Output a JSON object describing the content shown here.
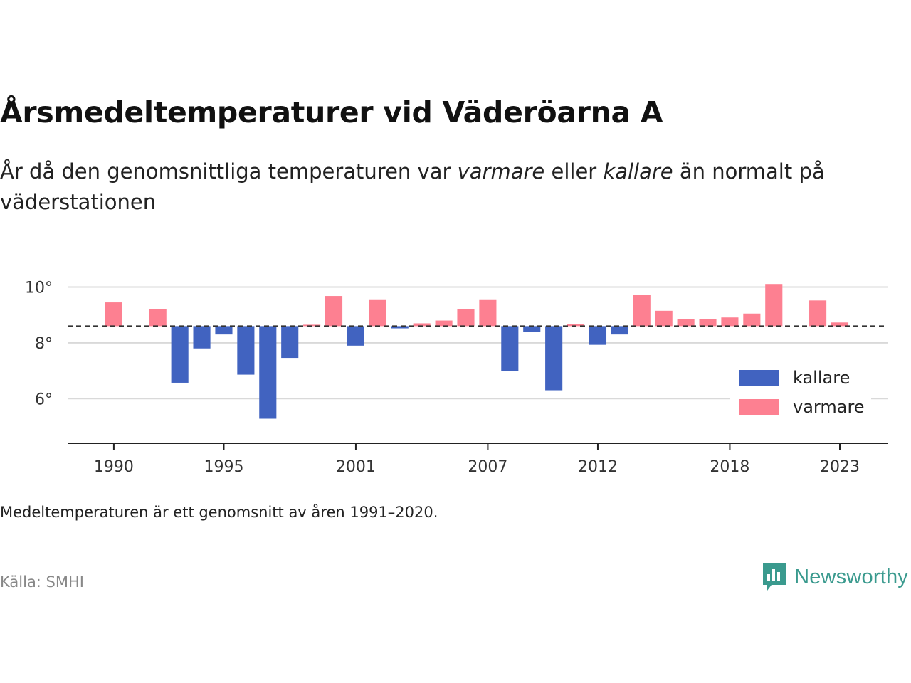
{
  "header": {
    "title": "Årsmedeltemperaturer vid Väderöarna A",
    "subtitle_before": "År då den genomsnittliga temperaturen var ",
    "subtitle_warm": "varmare",
    "subtitle_mid": " eller ",
    "subtitle_cold": "kallare",
    "subtitle_after": " än normalt på väderstationen"
  },
  "footer": {
    "note": "Medeltemperaturen är ett genomsnitt av åren 1991–2020.",
    "source": "Källa: SMHI",
    "brand": "Newsworthy"
  },
  "colors": {
    "warm": "#fd8091",
    "cold": "#4163c0",
    "brand": "#3a9a8e"
  },
  "chart_data": {
    "type": "bar",
    "baseline": 8.6,
    "ylim": [
      4.4,
      10.6
    ],
    "y_ticks": [
      6,
      8,
      10
    ],
    "y_tick_labels": [
      "6°",
      "8°",
      "10°"
    ],
    "x_ticks": [
      1990,
      1995,
      2001,
      2007,
      2012,
      2018,
      2023
    ],
    "xlim": [
      1987.9,
      2025.2
    ],
    "grid": true,
    "legend_position": "bottom-right",
    "legend": [
      {
        "label": "kallare",
        "key": "cold"
      },
      {
        "label": "varmare",
        "key": "warm"
      }
    ],
    "years": [
      1990,
      1992,
      1993,
      1994,
      1995,
      1996,
      1997,
      1998,
      1999,
      2000,
      2001,
      2002,
      2003,
      2004,
      2005,
      2006,
      2007,
      2008,
      2009,
      2010,
      2011,
      2012,
      2013,
      2014,
      2015,
      2016,
      2017,
      2018,
      2019,
      2020,
      2022,
      2023
    ],
    "values": [
      9.45,
      9.22,
      6.57,
      7.8,
      8.3,
      6.86,
      5.28,
      7.46,
      8.65,
      9.68,
      7.9,
      9.56,
      8.52,
      8.7,
      8.8,
      9.2,
      9.56,
      6.98,
      8.4,
      6.3,
      8.66,
      7.93,
      8.3,
      9.72,
      9.15,
      8.84,
      8.84,
      8.91,
      9.05,
      10.11,
      9.52,
      8.73
    ]
  }
}
